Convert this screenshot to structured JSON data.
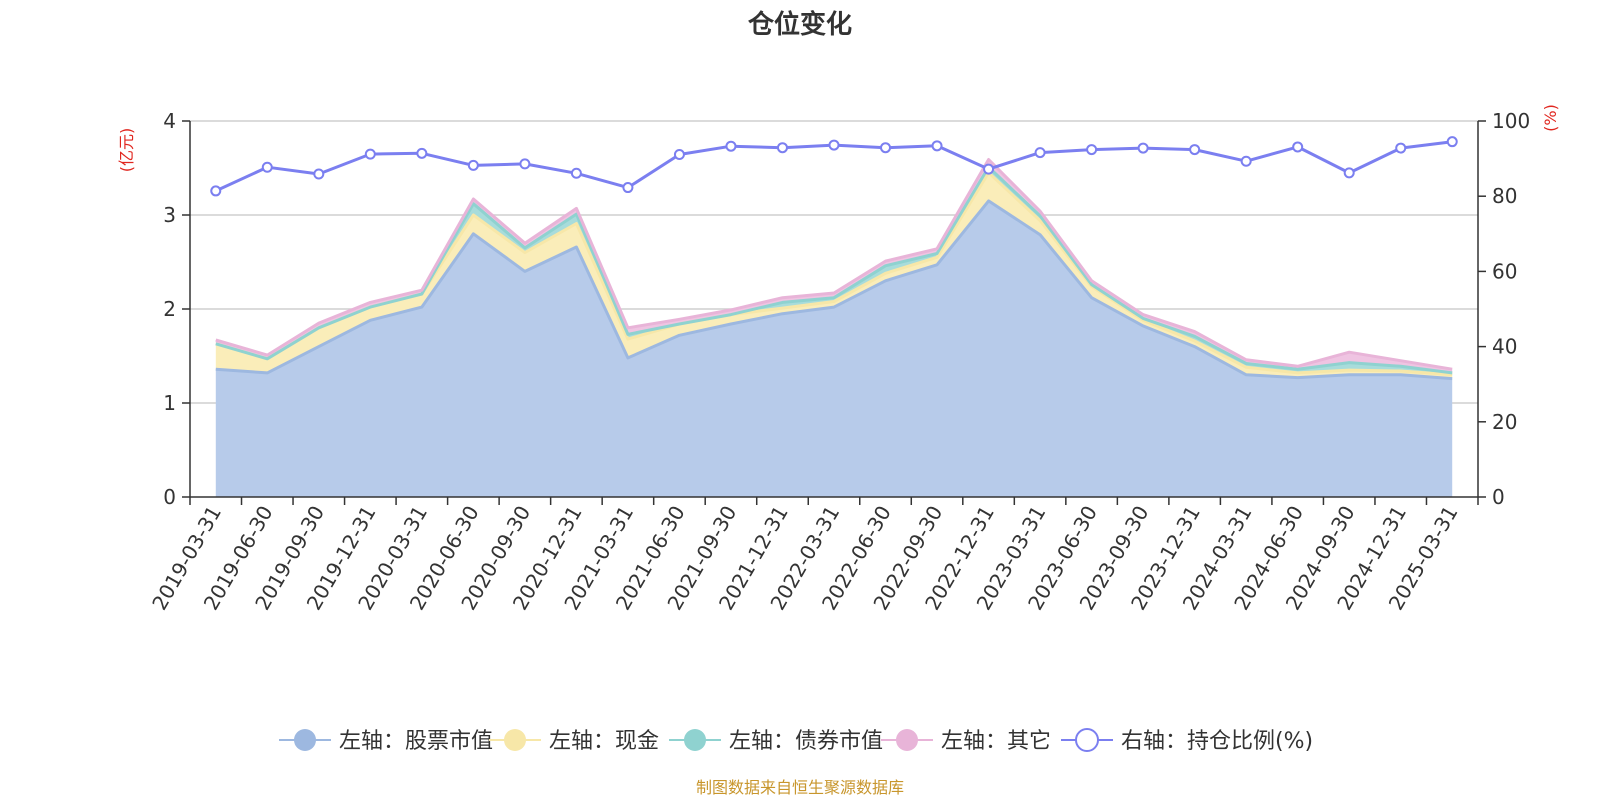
{
  "chart_data": {
    "type": "area",
    "title": "仓位变化",
    "left_axis_unit": "(亿元)",
    "right_axis_unit": "(%)",
    "left_ylim": [
      0,
      4
    ],
    "left_ticks": [
      "0",
      "1",
      "2",
      "3",
      "4"
    ],
    "right_ylim": [
      0,
      100
    ],
    "right_ticks": [
      "0",
      "20",
      "40",
      "60",
      "80",
      "100"
    ],
    "grid": true,
    "stacked": true,
    "categories": [
      "2019-03-31",
      "2019-06-30",
      "2019-09-30",
      "2019-12-31",
      "2020-03-31",
      "2020-06-30",
      "2020-09-30",
      "2020-12-31",
      "2021-03-31",
      "2021-06-30",
      "2021-09-30",
      "2021-12-31",
      "2022-03-31",
      "2022-06-30",
      "2022-09-30",
      "2022-12-31",
      "2023-03-31",
      "2023-06-30",
      "2023-09-30",
      "2023-12-31",
      "2024-03-31",
      "2024-06-30",
      "2024-09-30",
      "2024-12-31",
      "2025-03-31"
    ],
    "series": [
      {
        "name": "左轴：股票市值",
        "axis": "left",
        "color": "#9db8e0",
        "fill": "#b7cbea",
        "values": [
          1.36,
          1.32,
          1.6,
          1.88,
          2.02,
          2.8,
          2.4,
          2.66,
          1.48,
          1.72,
          1.84,
          1.95,
          2.02,
          2.3,
          2.47,
          3.15,
          2.79,
          2.12,
          1.82,
          1.6,
          1.3,
          1.27,
          1.3,
          1.3,
          1.26
        ]
      },
      {
        "name": "左轴：现金",
        "axis": "left",
        "color": "#f7e7a8",
        "fill": "#faedb9",
        "values": [
          0.27,
          0.15,
          0.2,
          0.14,
          0.14,
          0.2,
          0.2,
          0.25,
          0.2,
          0.12,
          0.1,
          0.06,
          0.06,
          0.08,
          0.08,
          0.3,
          0.15,
          0.12,
          0.06,
          0.06,
          0.08,
          0.05,
          0.05,
          0.04,
          0.04
        ]
      },
      {
        "name": "左轴：债券市值",
        "axis": "left",
        "color": "#8fd2d0",
        "fill": "#a8dcdb",
        "values": [
          0,
          0,
          0,
          0,
          0,
          0.12,
          0.05,
          0.1,
          0.05,
          0,
          0,
          0.06,
          0.04,
          0.08,
          0.04,
          0.06,
          0.05,
          0.02,
          0.02,
          0.05,
          0.04,
          0.04,
          0.08,
          0.05,
          0.02
        ]
      },
      {
        "name": "左轴：其它",
        "axis": "left",
        "color": "#e8b4d8",
        "fill": "#efc4e2",
        "values": [
          0.04,
          0.04,
          0.05,
          0.05,
          0.04,
          0.05,
          0.05,
          0.06,
          0.07,
          0.05,
          0.05,
          0.05,
          0.05,
          0.05,
          0.05,
          0.08,
          0.05,
          0.04,
          0.04,
          0.05,
          0.04,
          0.03,
          0.11,
          0.06,
          0.04
        ]
      },
      {
        "name": "右轴：持仓比例(%)",
        "axis": "right",
        "color": "#7b7ff0",
        "values": [
          81.4,
          87.7,
          85.9,
          91.2,
          91.4,
          88.2,
          88.6,
          86.1,
          82.3,
          91.1,
          93.3,
          92.9,
          93.6,
          92.9,
          93.4,
          87.2,
          91.6,
          92.4,
          92.8,
          92.4,
          89.3,
          93.1,
          86.2,
          92.8,
          94.5
        ]
      }
    ],
    "source_note": "制图数据来自恒生聚源数据库"
  }
}
